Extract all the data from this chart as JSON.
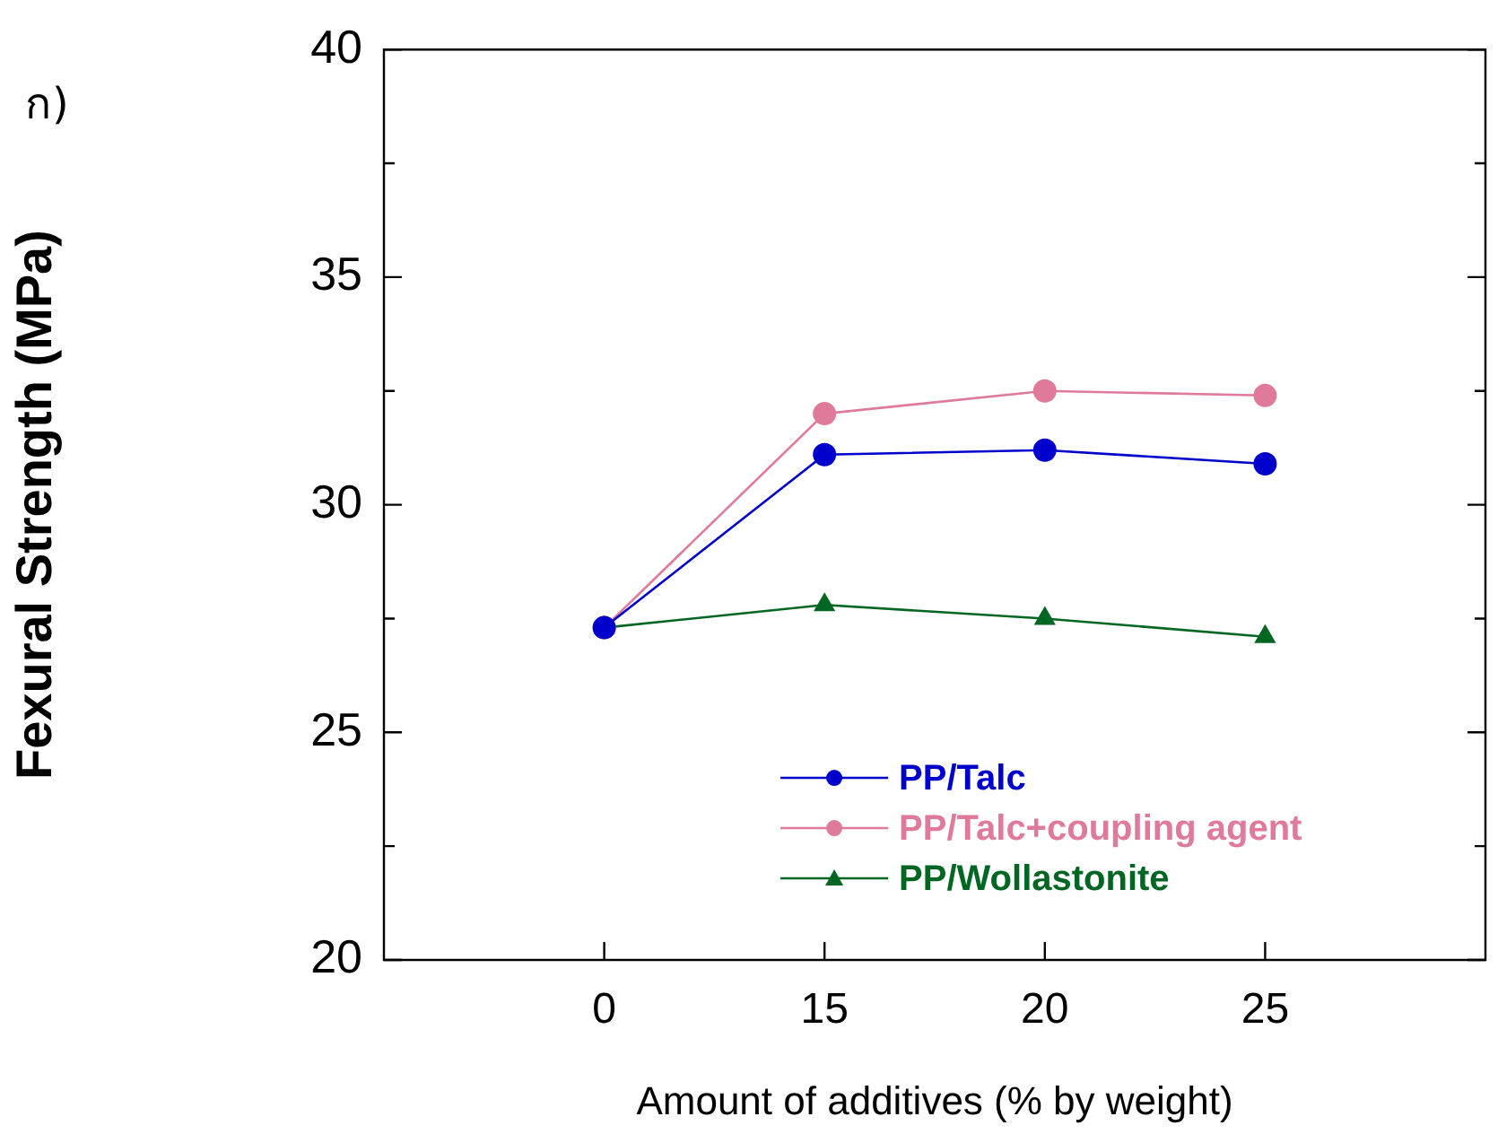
{
  "chart_data": {
    "type": "line",
    "xlabel": "Amount of additives (% by weight)",
    "ylabel": "Fexural Strength (MPa)",
    "annotations": [
      "ก)"
    ],
    "categories": [
      "0",
      "15",
      "20",
      "25"
    ],
    "series": [
      {
        "name": "PP/Talc",
        "color": "#0000cc",
        "marker": "circle",
        "values": [
          27.3,
          31.1,
          31.2,
          30.9
        ]
      },
      {
        "name": "PP/Talc+coupling agent",
        "color": "#e07a9a",
        "marker": "circle",
        "values": [
          27.3,
          32.0,
          32.5,
          32.4
        ]
      },
      {
        "name": "PP/Wollastonite",
        "color": "#006622",
        "marker": "triangle",
        "values": [
          27.3,
          27.8,
          27.5,
          27.1
        ]
      }
    ],
    "ylim": [
      20,
      40
    ],
    "yticks": [
      20,
      {
        "value": 22.5,
        "label": null
      },
      25,
      {
        "value": 27.5,
        "label": null
      },
      30,
      {
        "value": 32.5,
        "label": null
      },
      35,
      {
        "value": 37.5,
        "label": null
      },
      40
    ],
    "grid": false,
    "legend": "bottom"
  }
}
